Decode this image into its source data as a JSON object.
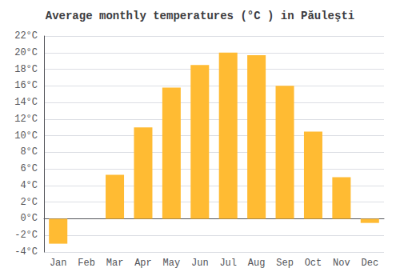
{
  "chart_data": {
    "type": "bar",
    "title": "Average monthly temperatures (°C ) in Păuleşti",
    "categories": [
      "Jan",
      "Feb",
      "Mar",
      "Apr",
      "May",
      "Jun",
      "Jul",
      "Aug",
      "Sep",
      "Oct",
      "Nov",
      "Dec"
    ],
    "values": [
      -3.0,
      0.0,
      5.3,
      11.0,
      15.8,
      18.5,
      20.0,
      19.7,
      16.0,
      10.5,
      5.0,
      -0.5
    ],
    "color": "#FFBB33",
    "ylim": [
      -4,
      22
    ],
    "yticks": [
      {
        "value": -4,
        "label": "-4°C"
      },
      {
        "value": -2,
        "label": "-2°C"
      },
      {
        "value": 0,
        "label": "0°C"
      },
      {
        "value": 2,
        "label": "2°C"
      },
      {
        "value": 4,
        "label": "4°C"
      },
      {
        "value": 6,
        "label": "6°C"
      },
      {
        "value": 8,
        "label": "8°C"
      },
      {
        "value": 10,
        "label": "10°C"
      },
      {
        "value": 12,
        "label": "12°C"
      },
      {
        "value": 14,
        "label": "14°C"
      },
      {
        "value": 16,
        "label": "16°C"
      },
      {
        "value": 18,
        "label": "18°C"
      },
      {
        "value": 20,
        "label": "20°C"
      },
      {
        "value": 22,
        "label": "22°C"
      }
    ],
    "grid": true
  }
}
